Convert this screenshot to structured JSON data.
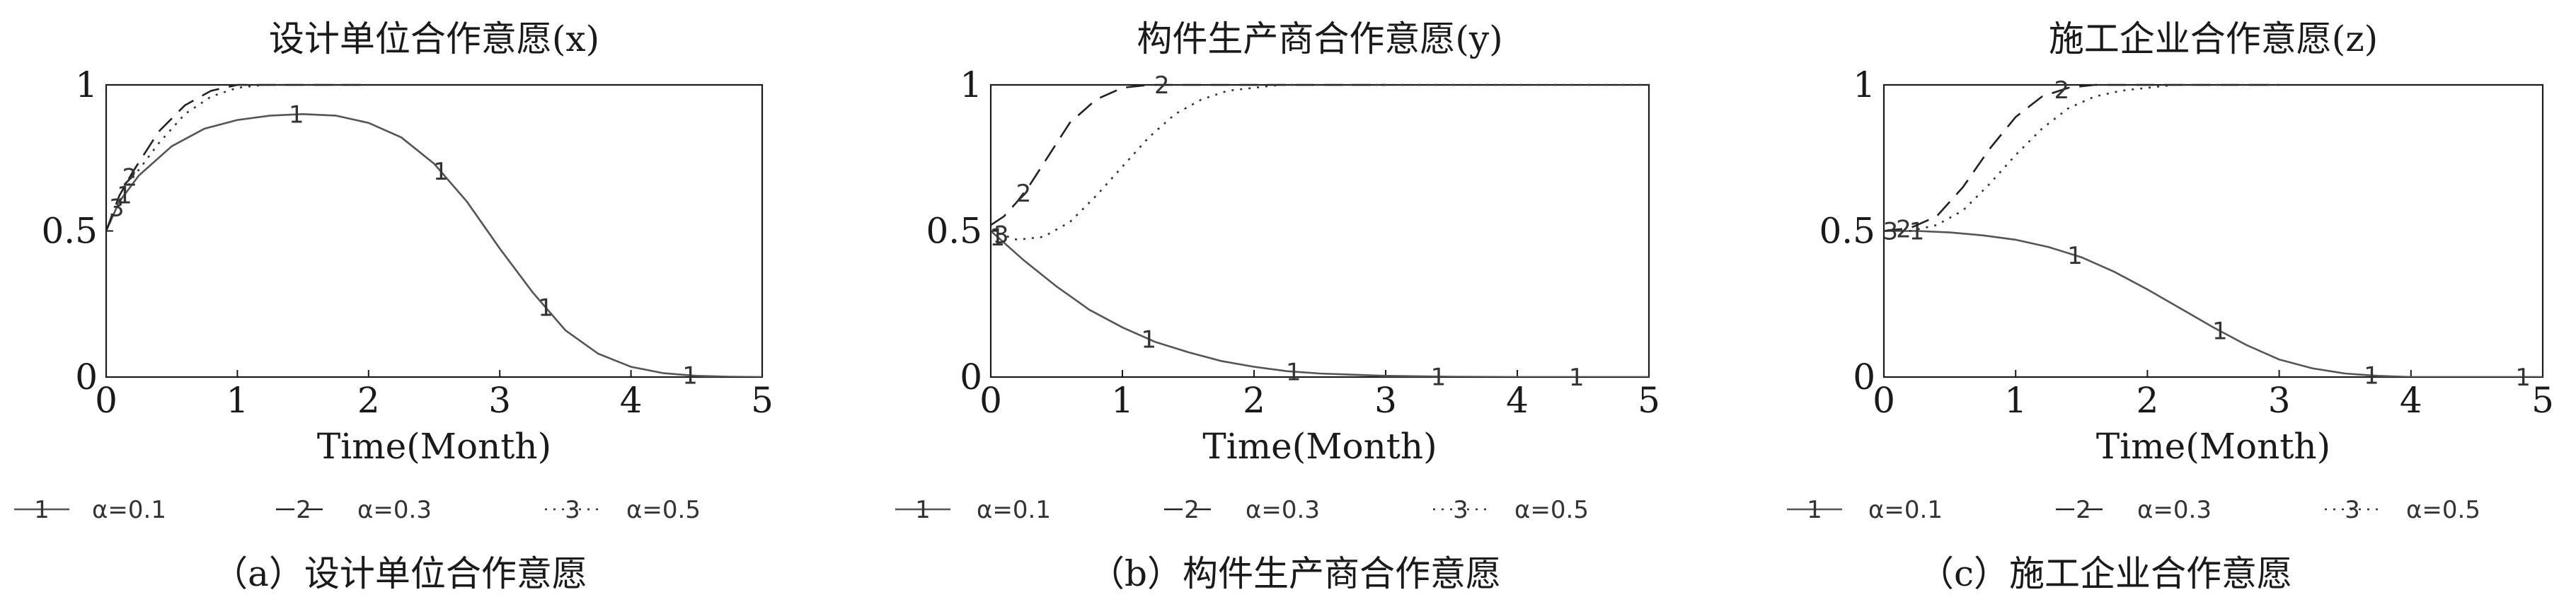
{
  "chart_data": [
    {
      "type": "line",
      "title": "设计单位合作意愿(x)",
      "caption": "（a）设计单位合作意愿",
      "xlabel": "Time(Month)",
      "ylabel": "",
      "xlim": [
        0,
        5
      ],
      "ylim": [
        0,
        1
      ],
      "xticks": [
        "0",
        "1",
        "2",
        "3",
        "4",
        "5"
      ],
      "yticks": [
        "0",
        "0.5",
        "1"
      ],
      "grid": false,
      "legend_position": "bottom",
      "series": [
        {
          "name": "α=0.1",
          "marker": "1",
          "style": "solid",
          "points": [
            [
              0,
              0.5
            ],
            [
              0.1,
              0.6
            ],
            [
              0.25,
              0.69
            ],
            [
              0.5,
              0.79
            ],
            [
              0.75,
              0.85
            ],
            [
              1,
              0.88
            ],
            [
              1.25,
              0.895
            ],
            [
              1.5,
              0.9
            ],
            [
              1.75,
              0.895
            ],
            [
              2,
              0.87
            ],
            [
              2.25,
              0.82
            ],
            [
              2.5,
              0.73
            ],
            [
              2.75,
              0.6
            ],
            [
              3,
              0.44
            ],
            [
              3.25,
              0.29
            ],
            [
              3.5,
              0.16
            ],
            [
              3.75,
              0.08
            ],
            [
              4,
              0.035
            ],
            [
              4.25,
              0.013
            ],
            [
              4.5,
              0.004
            ],
            [
              4.75,
              0.001
            ],
            [
              5,
              0
            ]
          ]
        },
        {
          "name": "α=0.3",
          "marker": "2",
          "style": "dashed",
          "points": [
            [
              0,
              0.5
            ],
            [
              0.1,
              0.62
            ],
            [
              0.2,
              0.7
            ],
            [
              0.4,
              0.84
            ],
            [
              0.6,
              0.93
            ],
            [
              0.8,
              0.98
            ],
            [
              1,
              1.0
            ],
            [
              1.5,
              1.0
            ],
            [
              2,
              1.0
            ]
          ]
        },
        {
          "name": "α=0.5",
          "marker": "3",
          "style": "dotted",
          "points": [
            [
              0,
              0.5
            ],
            [
              0.1,
              0.6
            ],
            [
              0.2,
              0.68
            ],
            [
              0.4,
              0.8
            ],
            [
              0.6,
              0.9
            ],
            [
              0.8,
              0.96
            ],
            [
              1,
              0.99
            ],
            [
              1.2,
              1.0
            ],
            [
              2,
              1.0
            ]
          ]
        }
      ]
    },
    {
      "type": "line",
      "title": "构件生产商合作意愿(y)",
      "caption": "（b）构件生产商合作意愿",
      "xlabel": "Time(Month)",
      "ylabel": "",
      "xlim": [
        0,
        5
      ],
      "ylim": [
        0,
        1
      ],
      "xticks": [
        "0",
        "1",
        "2",
        "3",
        "4",
        "5"
      ],
      "yticks": [
        "0",
        "0.5",
        "1"
      ],
      "grid": false,
      "legend_position": "bottom",
      "series": [
        {
          "name": "α=0.1",
          "marker": "1",
          "style": "solid",
          "points": [
            [
              0,
              0.5
            ],
            [
              0.25,
              0.4
            ],
            [
              0.5,
              0.31
            ],
            [
              0.75,
              0.23
            ],
            [
              1,
              0.17
            ],
            [
              1.25,
              0.12
            ],
            [
              1.5,
              0.085
            ],
            [
              1.75,
              0.055
            ],
            [
              2,
              0.035
            ],
            [
              2.25,
              0.02
            ],
            [
              2.5,
              0.012
            ],
            [
              3,
              0.004
            ],
            [
              3.5,
              0.001
            ],
            [
              4,
              0
            ],
            [
              5,
              0
            ]
          ]
        },
        {
          "name": "α=0.3",
          "marker": "2",
          "style": "dashed",
          "points": [
            [
              0,
              0.52
            ],
            [
              0.1,
              0.55
            ],
            [
              0.2,
              0.6
            ],
            [
              0.3,
              0.66
            ],
            [
              0.4,
              0.73
            ],
            [
              0.5,
              0.8
            ],
            [
              0.6,
              0.87
            ],
            [
              0.8,
              0.95
            ],
            [
              1,
              0.99
            ],
            [
              1.2,
              1.0
            ],
            [
              3,
              1.0
            ]
          ]
        },
        {
          "name": "α=0.5",
          "marker": "3",
          "style": "dotted",
          "points": [
            [
              0,
              0.5
            ],
            [
              0.2,
              0.47
            ],
            [
              0.4,
              0.48
            ],
            [
              0.6,
              0.53
            ],
            [
              0.8,
              0.62
            ],
            [
              1,
              0.72
            ],
            [
              1.2,
              0.82
            ],
            [
              1.4,
              0.9
            ],
            [
              1.6,
              0.95
            ],
            [
              1.8,
              0.98
            ],
            [
              2,
              0.99
            ],
            [
              2.2,
              1.0
            ],
            [
              5,
              1.0
            ]
          ]
        }
      ]
    },
    {
      "type": "line",
      "title": "施工企业合作意愿(z)",
      "caption": "（c）施工企业合作意愿",
      "xlabel": "Time(Month)",
      "ylabel": "",
      "xlim": [
        0,
        5
      ],
      "ylim": [
        0,
        1
      ],
      "xticks": [
        "0",
        "1",
        "2",
        "3",
        "4",
        "5"
      ],
      "yticks": [
        "0",
        "0.5",
        "1"
      ],
      "grid": false,
      "legend_position": "bottom",
      "series": [
        {
          "name": "α=0.1",
          "marker": "1",
          "style": "solid",
          "points": [
            [
              0,
              0.5
            ],
            [
              0.25,
              0.5
            ],
            [
              0.5,
              0.495
            ],
            [
              0.75,
              0.485
            ],
            [
              1,
              0.47
            ],
            [
              1.25,
              0.445
            ],
            [
              1.5,
              0.41
            ],
            [
              1.75,
              0.36
            ],
            [
              2,
              0.3
            ],
            [
              2.25,
              0.235
            ],
            [
              2.5,
              0.17
            ],
            [
              2.75,
              0.11
            ],
            [
              3,
              0.06
            ],
            [
              3.25,
              0.03
            ],
            [
              3.5,
              0.012
            ],
            [
              3.75,
              0.004
            ],
            [
              4,
              0
            ],
            [
              5,
              0
            ]
          ]
        },
        {
          "name": "α=0.3",
          "marker": "2",
          "style": "dashed",
          "points": [
            [
              0,
              0.5
            ],
            [
              0.2,
              0.51
            ],
            [
              0.4,
              0.55
            ],
            [
              0.6,
              0.65
            ],
            [
              0.8,
              0.78
            ],
            [
              1,
              0.89
            ],
            [
              1.2,
              0.96
            ],
            [
              1.4,
              0.99
            ],
            [
              1.6,
              1.0
            ],
            [
              3,
              1.0
            ]
          ]
        },
        {
          "name": "α=0.5",
          "marker": "3",
          "style": "dotted",
          "points": [
            [
              0,
              0.5
            ],
            [
              0.2,
              0.5
            ],
            [
              0.4,
              0.52
            ],
            [
              0.6,
              0.57
            ],
            [
              0.8,
              0.66
            ],
            [
              1,
              0.76
            ],
            [
              1.2,
              0.85
            ],
            [
              1.4,
              0.92
            ],
            [
              1.6,
              0.96
            ],
            [
              1.8,
              0.98
            ],
            [
              2,
              0.99
            ],
            [
              2.2,
              1.0
            ],
            [
              3,
              1.0
            ]
          ]
        }
      ]
    }
  ]
}
